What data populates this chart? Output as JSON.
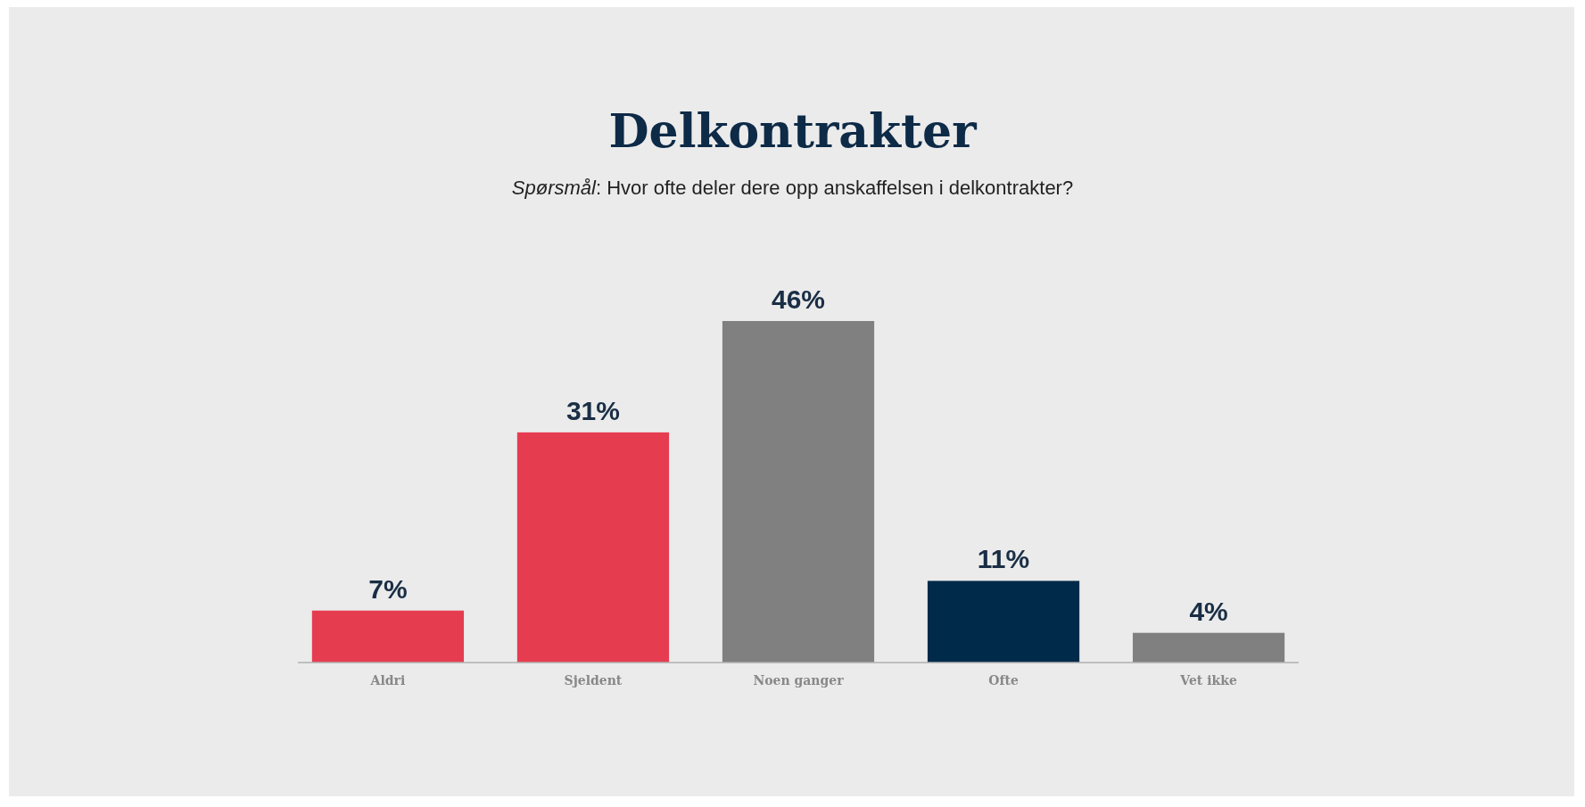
{
  "chart_data": {
    "type": "bar",
    "title": "Delkontrakter",
    "subtitle": "Spørsmål: Hvor ofte deler dere opp anskaffelsen i delkontrakter?",
    "categories": [
      "Aldri",
      "Sjeldent",
      "Noen ganger",
      "Ofte",
      "Vet ikke"
    ],
    "values": [
      7,
      31,
      46,
      11,
      4
    ],
    "value_labels": [
      "7%",
      "31%",
      "46%",
      "11%",
      "4%"
    ],
    "colors": [
      "#e63c50",
      "#e63c50",
      "#808080",
      "#002a4a",
      "#808080"
    ]
  }
}
